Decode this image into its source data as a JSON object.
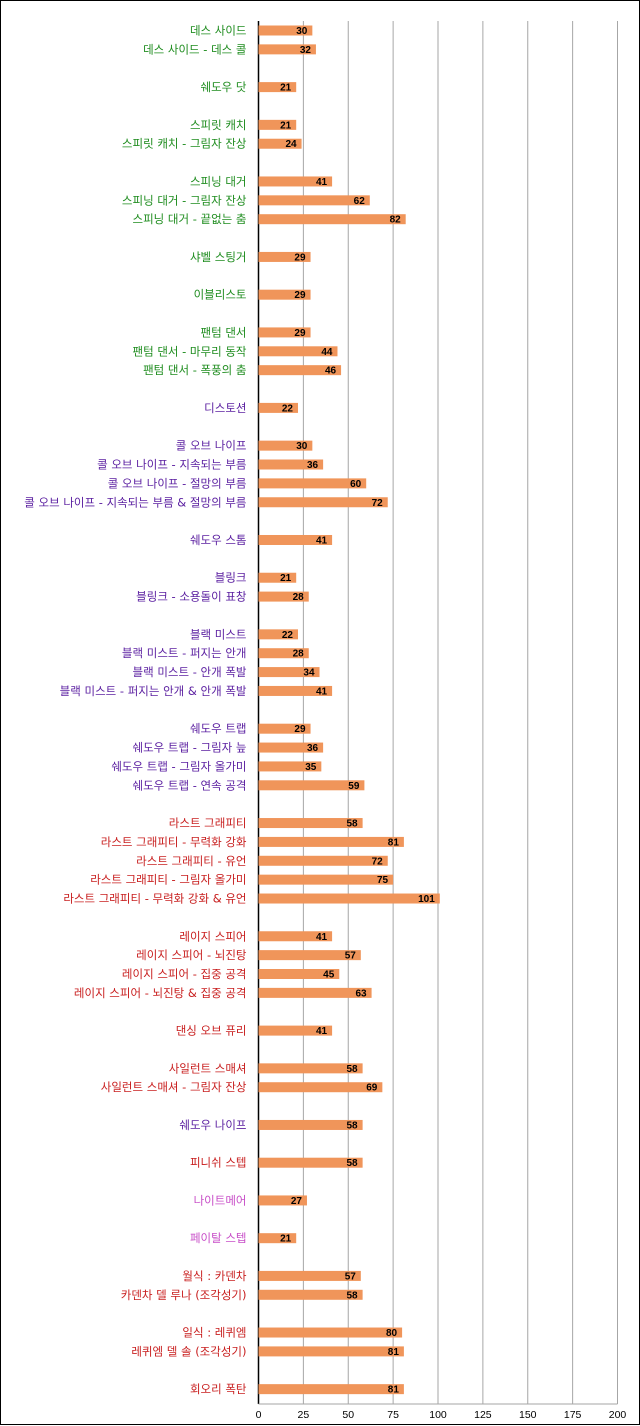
{
  "colors": {
    "bar": "#f0955a",
    "grid": "#a6a6a6",
    "axis": "#000000",
    "green": "#1e8c1e",
    "purple": "#5a1ea0",
    "red": "#c81e1e",
    "pink": "#c84ec8"
  },
  "chart_data": {
    "type": "bar",
    "orientation": "horizontal",
    "xlim": [
      0,
      200
    ],
    "xticks": [
      "0",
      "25",
      "50",
      "75",
      "100",
      "125",
      "150",
      "175",
      "200"
    ],
    "grid": "vertical",
    "legend": "none",
    "categories": [
      "데스 사이드",
      "데스 사이드 - 데스 콜",
      "",
      "쉐도우 닷",
      "",
      "스피릿 캐치",
      "스피릿 캐치 - 그림자 잔상",
      "",
      "스피닝 대거",
      "스피닝 대거 - 그림자 잔상",
      "스피닝 대거 - 끝없는 춤",
      "",
      "샤벨 스팅거",
      "",
      "이블리스토",
      "",
      "팬텀 댄서",
      "팬텀 댄서 - 마무리 동작",
      "팬텀 댄서 - 폭풍의 춤",
      "",
      "디스토션",
      "",
      "콜 오브 나이프",
      "콜 오브 나이프 - 지속되는 부름",
      "콜 오브 나이프 - 절망의 부름",
      "콜 오브 나이프 - 지속되는 부름 & 절망의 부름",
      "",
      "쉐도우 스톰",
      "",
      "블링크",
      "블링크 - 소용돌이 표창",
      "",
      "블랙 미스트",
      "블랙 미스트 - 퍼지는 안개",
      "블랙 미스트 - 안개 폭발",
      "블랙 미스트 - 퍼지는 안개 & 안개 폭발",
      "",
      "쉐도우 트랩",
      "쉐도우 트랩 - 그림자 늪",
      "쉐도우 트랩 - 그림자 올가미",
      "쉐도우 트랩 - 연속 공격",
      "",
      "라스트 그래피티",
      "라스트 그래피티 - 무력화 강화",
      "라스트 그래피티 - 유언",
      "라스트 그래피티 - 그림자 올가미",
      "라스트 그래피티 - 무력화 강화 & 유언",
      "",
      "레이지 스피어",
      "레이지 스피어 - 뇌진탕",
      "레이지 스피어 - 집중 공격",
      "레이지 스피어 - 뇌진탕 & 집중 공격",
      "",
      "댄싱 오브 퓨리",
      "",
      "사일런트 스매셔",
      "사일런트 스매셔 - 그림자 잔상",
      "",
      "쉐도우 나이프",
      "",
      "피니쉬 스텝",
      "",
      "나이트메어",
      "",
      "페이탈 스텝",
      "",
      "월식 : 카덴차",
      "카덴차 델 루나 (조각성기)",
      "",
      "일식 : 레퀴엠",
      "레퀴엠 델 솔 (조각성기)",
      "",
      "회오리 폭탄"
    ],
    "values": [
      30,
      32,
      null,
      21,
      null,
      21,
      24,
      null,
      41,
      62,
      82,
      null,
      29,
      null,
      29,
      null,
      29,
      44,
      46,
      null,
      22,
      null,
      30,
      36,
      60,
      72,
      null,
      41,
      null,
      21,
      28,
      null,
      22,
      28,
      34,
      41,
      null,
      29,
      36,
      35,
      59,
      null,
      58,
      81,
      72,
      75,
      101,
      null,
      41,
      57,
      45,
      63,
      null,
      41,
      null,
      58,
      69,
      null,
      58,
      null,
      58,
      null,
      27,
      null,
      21,
      null,
      57,
      58,
      null,
      80,
      81,
      null,
      81
    ],
    "label_colors": [
      "green",
      "green",
      null,
      "green",
      null,
      "green",
      "green",
      null,
      "green",
      "green",
      "green",
      null,
      "green",
      null,
      "green",
      null,
      "green",
      "green",
      "green",
      null,
      "purple",
      null,
      "purple",
      "purple",
      "purple",
      "purple",
      null,
      "purple",
      null,
      "purple",
      "purple",
      null,
      "purple",
      "purple",
      "purple",
      "purple",
      null,
      "purple",
      "purple",
      "purple",
      "purple",
      null,
      "red",
      "red",
      "red",
      "red",
      "red",
      null,
      "red",
      "red",
      "red",
      "red",
      null,
      "red",
      null,
      "red",
      "red",
      null,
      "purple",
      null,
      "red",
      null,
      "pink",
      null,
      "pink",
      null,
      "red",
      "red",
      null,
      "red",
      "red",
      null,
      "red"
    ]
  }
}
